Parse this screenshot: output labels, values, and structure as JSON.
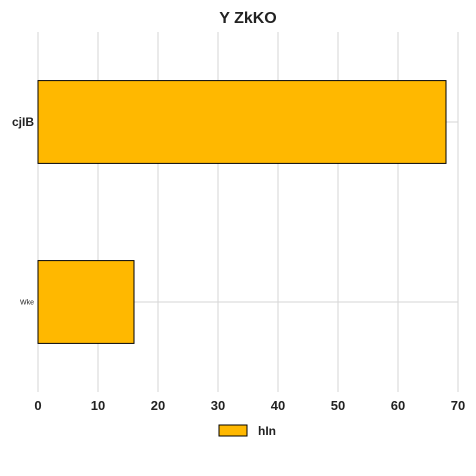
{
  "chart_data": {
    "type": "bar",
    "orientation": "horizontal",
    "title": "Y ZkKO",
    "xlabel": "",
    "ylabel": "",
    "categories": [
      "cjIB",
      "Wke"
    ],
    "series": [
      {
        "name": "hIn",
        "values": [
          68,
          16
        ],
        "color": "#FFB800"
      }
    ],
    "xlim": [
      0,
      70
    ],
    "xticks": [
      0,
      10,
      20,
      30,
      40,
      50,
      60,
      70
    ],
    "grid": true,
    "legend_position": "bottom-center",
    "bar_edge_color": "#000000"
  }
}
